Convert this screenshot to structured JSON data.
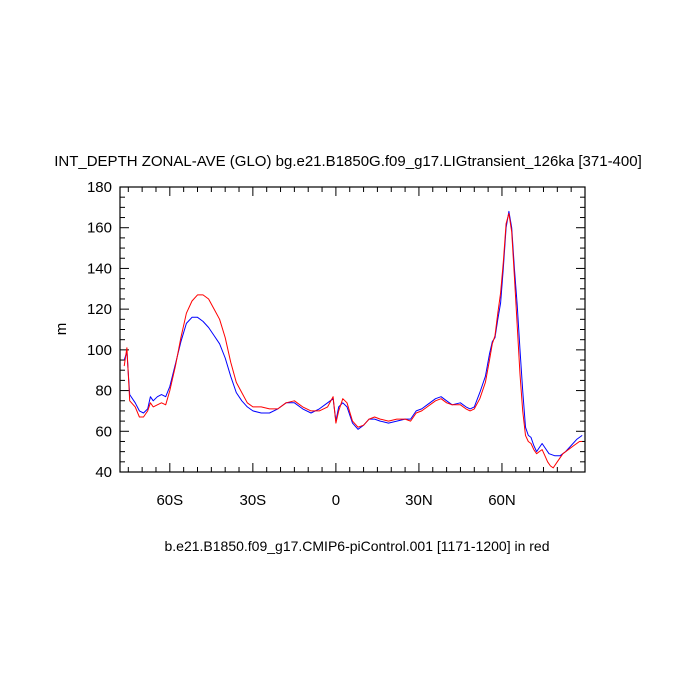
{
  "chart_data": {
    "type": "line",
    "title": "INT_DEPTH ZONAL-AVE (GLO) bg.e21.B1850G.f09_g17.LIGtransient_126ka [371-400]",
    "subtitle": "b.e21.B1850.f09_g17.CMIP6-piControl.001 [1171-1200] in red",
    "xlabel": "",
    "ylabel": "m",
    "xlim": [
      -78,
      90
    ],
    "ylim": [
      40,
      180
    ],
    "xticks": [
      {
        "value": -60,
        "label": "60S"
      },
      {
        "value": -30,
        "label": "30S"
      },
      {
        "value": 0,
        "label": "0"
      },
      {
        "value": 30,
        "label": "30N"
      },
      {
        "value": 60,
        "label": "60N"
      }
    ],
    "yticks": [
      40,
      60,
      80,
      100,
      120,
      140,
      160,
      180
    ],
    "grid": false,
    "series": [
      {
        "color": "#0000ff",
        "points": [
          [
            -76.5,
            95
          ],
          [
            -75.5,
            99
          ],
          [
            -74.5,
            78
          ],
          [
            -72.5,
            74
          ],
          [
            -71,
            70
          ],
          [
            -69.5,
            69
          ],
          [
            -68,
            71
          ],
          [
            -67,
            77
          ],
          [
            -66,
            75
          ],
          [
            -64.5,
            77
          ],
          [
            -63,
            78
          ],
          [
            -61.5,
            77
          ],
          [
            -60,
            82
          ],
          [
            -58,
            93
          ],
          [
            -56,
            104
          ],
          [
            -54,
            113
          ],
          [
            -52,
            116
          ],
          [
            -50,
            116
          ],
          [
            -48,
            114
          ],
          [
            -46,
            111
          ],
          [
            -44,
            107
          ],
          [
            -42,
            103
          ],
          [
            -40,
            96
          ],
          [
            -38,
            87
          ],
          [
            -36,
            79
          ],
          [
            -34,
            75
          ],
          [
            -32,
            72
          ],
          [
            -30,
            70
          ],
          [
            -27,
            69
          ],
          [
            -24,
            69
          ],
          [
            -21,
            71
          ],
          [
            -18,
            74
          ],
          [
            -15,
            74
          ],
          [
            -12,
            71
          ],
          [
            -9,
            69
          ],
          [
            -6,
            71
          ],
          [
            -3,
            74
          ],
          [
            -1,
            76
          ],
          [
            0,
            65
          ],
          [
            1,
            72
          ],
          [
            2.5,
            74
          ],
          [
            4,
            72
          ],
          [
            6,
            64
          ],
          [
            8,
            61
          ],
          [
            10,
            63
          ],
          [
            12,
            66
          ],
          [
            14,
            66
          ],
          [
            16,
            65
          ],
          [
            19,
            64
          ],
          [
            22,
            65
          ],
          [
            25,
            66
          ],
          [
            27,
            66
          ],
          [
            29,
            70
          ],
          [
            31,
            71
          ],
          [
            33,
            73
          ],
          [
            36,
            76
          ],
          [
            38,
            77
          ],
          [
            40,
            75
          ],
          [
            42,
            73
          ],
          [
            45,
            74
          ],
          [
            47,
            72
          ],
          [
            48.5,
            71
          ],
          [
            50,
            72
          ],
          [
            52,
            79
          ],
          [
            54,
            87
          ],
          [
            55.5,
            98
          ],
          [
            56.5,
            104
          ],
          [
            57.5,
            106
          ],
          [
            58.5,
            115
          ],
          [
            59.5,
            123
          ],
          [
            60.5,
            140
          ],
          [
            61.5,
            160
          ],
          [
            62.5,
            168
          ],
          [
            63.5,
            160
          ],
          [
            64.5,
            140
          ],
          [
            65.5,
            122
          ],
          [
            66.5,
            100
          ],
          [
            67.5,
            80
          ],
          [
            68.5,
            62
          ],
          [
            69.5,
            58
          ],
          [
            70.5,
            57
          ],
          [
            71.5,
            53
          ],
          [
            72.5,
            50
          ],
          [
            73.5,
            52
          ],
          [
            74.5,
            54
          ],
          [
            75.5,
            52
          ],
          [
            77,
            49
          ],
          [
            79,
            48
          ],
          [
            81,
            48
          ],
          [
            83,
            50
          ],
          [
            85,
            53
          ],
          [
            87,
            56
          ],
          [
            89,
            58
          ]
        ]
      },
      {
        "color": "#ff0000",
        "points": [
          [
            -76.5,
            92
          ],
          [
            -75.5,
            101
          ],
          [
            -74.5,
            75
          ],
          [
            -72.5,
            72
          ],
          [
            -71,
            67
          ],
          [
            -69.5,
            67
          ],
          [
            -68,
            70
          ],
          [
            -67,
            74
          ],
          [
            -66,
            72
          ],
          [
            -64.5,
            73
          ],
          [
            -63,
            74
          ],
          [
            -61.5,
            73
          ],
          [
            -60,
            80
          ],
          [
            -58,
            92
          ],
          [
            -56,
            106
          ],
          [
            -54,
            118
          ],
          [
            -52,
            124
          ],
          [
            -50,
            127
          ],
          [
            -48,
            127
          ],
          [
            -46,
            125
          ],
          [
            -44,
            120
          ],
          [
            -42,
            115
          ],
          [
            -40,
            106
          ],
          [
            -38,
            94
          ],
          [
            -36,
            84
          ],
          [
            -34,
            79
          ],
          [
            -32,
            74
          ],
          [
            -30,
            72
          ],
          [
            -27,
            72
          ],
          [
            -24,
            71
          ],
          [
            -21,
            71
          ],
          [
            -18,
            74
          ],
          [
            -15,
            75
          ],
          [
            -12,
            72
          ],
          [
            -9,
            70
          ],
          [
            -6,
            70
          ],
          [
            -3,
            72
          ],
          [
            -1,
            77
          ],
          [
            0,
            64
          ],
          [
            1,
            70
          ],
          [
            2.5,
            76
          ],
          [
            4,
            74
          ],
          [
            6,
            65
          ],
          [
            8,
            62
          ],
          [
            10,
            63
          ],
          [
            12,
            66
          ],
          [
            14,
            67
          ],
          [
            16,
            66
          ],
          [
            19,
            65
          ],
          [
            22,
            66
          ],
          [
            25,
            66
          ],
          [
            27,
            65
          ],
          [
            29,
            69
          ],
          [
            31,
            70
          ],
          [
            33,
            72
          ],
          [
            36,
            75
          ],
          [
            38,
            76
          ],
          [
            40,
            74
          ],
          [
            42,
            73
          ],
          [
            45,
            73
          ],
          [
            47,
            71
          ],
          [
            48.5,
            70
          ],
          [
            50,
            71
          ],
          [
            52,
            76
          ],
          [
            54,
            84
          ],
          [
            55.5,
            95
          ],
          [
            56.5,
            103
          ],
          [
            57.5,
            107
          ],
          [
            58.5,
            118
          ],
          [
            59.5,
            128
          ],
          [
            60.5,
            143
          ],
          [
            61.5,
            162
          ],
          [
            62.5,
            167
          ],
          [
            63.5,
            158
          ],
          [
            64.5,
            136
          ],
          [
            65.5,
            112
          ],
          [
            66.5,
            88
          ],
          [
            67.5,
            70
          ],
          [
            68.5,
            58
          ],
          [
            69.5,
            55
          ],
          [
            70.5,
            54
          ],
          [
            71.5,
            51
          ],
          [
            72.5,
            49
          ],
          [
            73.5,
            50
          ],
          [
            74.5,
            51
          ],
          [
            75.5,
            48
          ],
          [
            76.5,
            45
          ],
          [
            77.5,
            43
          ],
          [
            78.5,
            42
          ],
          [
            80,
            45
          ],
          [
            82,
            49
          ],
          [
            84,
            51
          ],
          [
            86,
            53
          ],
          [
            88,
            55
          ],
          [
            89,
            55
          ]
        ]
      }
    ]
  }
}
